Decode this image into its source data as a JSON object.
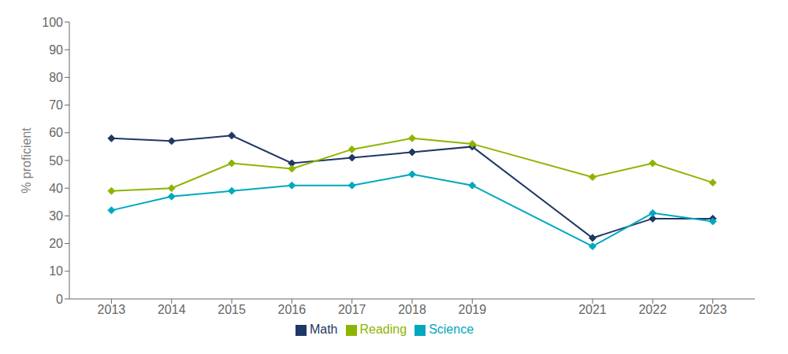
{
  "chart_data": {
    "type": "line",
    "x": [
      2013,
      2014,
      2015,
      2016,
      2017,
      2018,
      2019,
      2021,
      2022,
      2023
    ],
    "series": [
      {
        "name": "Math",
        "color": "#1f3864",
        "values": [
          58,
          57,
          59,
          49,
          51,
          53,
          55,
          22,
          29,
          29
        ]
      },
      {
        "name": "Reading",
        "color": "#8db500",
        "values": [
          39,
          40,
          49,
          47,
          54,
          58,
          56,
          44,
          49,
          42
        ]
      },
      {
        "name": "Science",
        "color": "#00a8c0",
        "values": [
          32,
          37,
          39,
          41,
          41,
          45,
          41,
          19,
          31,
          28
        ]
      }
    ],
    "marker": "diamond",
    "xlim": [
      2012.3,
      2023.7
    ],
    "xticks": [
      2013,
      2014,
      2015,
      2016,
      2017,
      2018,
      2019,
      2021,
      2022,
      2023
    ],
    "ylim": [
      0,
      100
    ],
    "yticks": [
      0,
      10,
      20,
      30,
      40,
      50,
      60,
      70,
      80,
      90,
      100
    ],
    "y_label": "% proficient",
    "grid": false,
    "legend": "bottom"
  }
}
